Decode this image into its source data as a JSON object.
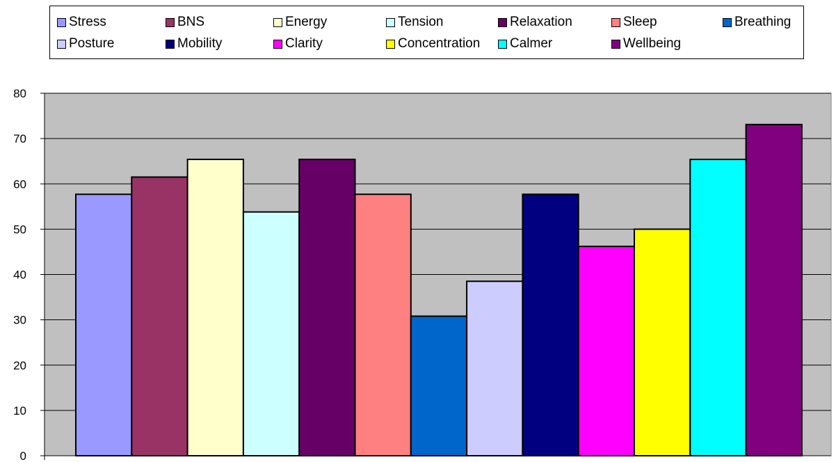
{
  "chart_data": {
    "type": "bar",
    "title": "",
    "xlabel": "",
    "ylabel": "",
    "ylim": [
      0,
      80
    ],
    "yticks": [
      0,
      10,
      20,
      30,
      40,
      50,
      60,
      70,
      80
    ],
    "grid": true,
    "legend_position": "top",
    "plot_background": "#c0c0c0",
    "categories": [
      "Stress",
      "BNS",
      "Energy",
      "Tension",
      "Relaxation",
      "Sleep",
      "Breathing",
      "Posture",
      "Mobility",
      "Clarity",
      "Concentration",
      "Calmer",
      "Wellbeing"
    ],
    "values": [
      57.7,
      61.5,
      65.4,
      53.8,
      65.4,
      57.7,
      30.8,
      38.5,
      57.7,
      46.2,
      50.0,
      65.4,
      73.1
    ],
    "colors": [
      "#9999ff",
      "#993366",
      "#ffffcc",
      "#ccffff",
      "#660066",
      "#ff8080",
      "#0066cc",
      "#ccccff",
      "#000080",
      "#ff00ff",
      "#ffff00",
      "#00ffff",
      "#800080"
    ]
  }
}
